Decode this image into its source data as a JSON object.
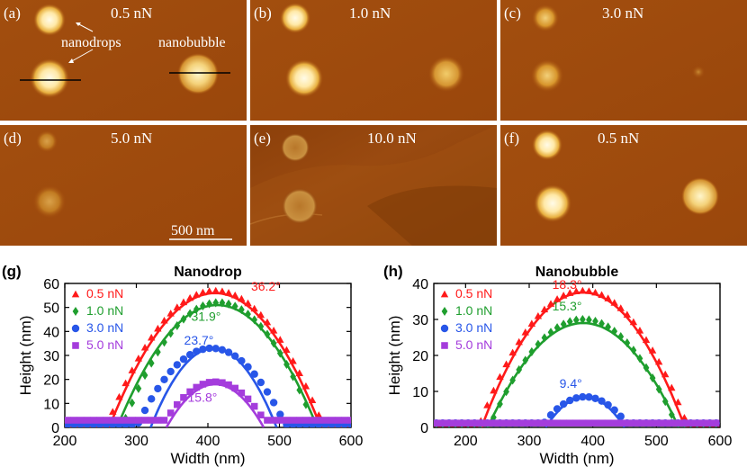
{
  "afm_panels": [
    {
      "label": "(a)",
      "force": "0.5 nN",
      "annot_drop": "nanodrops",
      "annot_bubble": "nanobubble"
    },
    {
      "label": "(b)",
      "force": "1.0 nN"
    },
    {
      "label": "(c)",
      "force": "3.0 nN"
    },
    {
      "label": "(d)",
      "force": "5.0 nN",
      "scale_bar": "500 nm"
    },
    {
      "label": "(e)",
      "force": "10.0 nN"
    },
    {
      "label": "(f)",
      "force": "0.5 nN"
    }
  ],
  "colors": {
    "afm_bg": "#9c4a0c",
    "afm_bg_light": "#b35e12",
    "s05": "#ff1a1a",
    "s10": "#1f9e2e",
    "s30": "#2856e8",
    "s50": "#a43cdc"
  },
  "chart_data": [
    {
      "type": "scatter",
      "panel_label": "(g)",
      "title": "Nanodrop",
      "xlabel": "Width (nm)",
      "ylabel": "Height (nm)",
      "xlim": [
        200,
        600
      ],
      "ylim": [
        0,
        60
      ],
      "xticks": [
        "200",
        "300",
        "400",
        "500",
        "600"
      ],
      "yticks": [
        "0",
        "10",
        "20",
        "30",
        "40",
        "50",
        "60"
      ],
      "series": [
        {
          "name": "0.5 nN",
          "marker": "triangle",
          "color": "#ff1a1a",
          "angle": "36.2°",
          "center": 410,
          "halfwidth": 152,
          "height": 57,
          "fit_center": 410,
          "fit_halfwidth": 148,
          "fit_height": 56
        },
        {
          "name": "1.0 nN",
          "marker": "diamond",
          "color": "#1f9e2e",
          "angle": "31.9°",
          "center": 415,
          "halfwidth": 135,
          "height": 52,
          "fit_center": 413,
          "fit_halfwidth": 140,
          "fit_height": 51
        },
        {
          "name": "3.0 nN",
          "marker": "circle",
          "color": "#2856e8",
          "angle": "23.7°",
          "center": 405,
          "halfwidth": 105,
          "height": 33,
          "fit_center": 408,
          "fit_halfwidth": 88,
          "fit_height": 33
        },
        {
          "name": "5.0 nN",
          "marker": "square",
          "color": "#a43cdc",
          "angle": "15.8°",
          "center": 410,
          "halfwidth": 75,
          "height": 19,
          "fit_center": 410,
          "fit_halfwidth": 68,
          "fit_height": 18
        }
      ]
    },
    {
      "type": "scatter",
      "panel_label": "(h)",
      "title": "Nanobubble",
      "xlabel": "Width (nm)",
      "ylabel": "Height (nm)",
      "xlim": [
        150,
        600
      ],
      "ylim": [
        0,
        40
      ],
      "xticks": [
        "200",
        "300",
        "400",
        "500",
        "600"
      ],
      "yticks": [
        "0",
        "10",
        "20",
        "30",
        "40"
      ],
      "series": [
        {
          "name": "0.5 nN",
          "marker": "triangle",
          "color": "#ff1a1a",
          "angle": "18.3°",
          "center": 385,
          "halfwidth": 165,
          "height": 38,
          "fit_center": 385,
          "fit_halfwidth": 160,
          "fit_height": 37.5
        },
        {
          "name": "1.0 nN",
          "marker": "diamond",
          "color": "#1f9e2e",
          "angle": "15.3°",
          "center": 385,
          "halfwidth": 148,
          "height": 30,
          "fit_center": 385,
          "fit_halfwidth": 150,
          "fit_height": 29
        },
        {
          "name": "3.0 nN",
          "marker": "circle",
          "color": "#2856e8",
          "angle": "9.4°",
          "center": 388,
          "halfwidth": 70,
          "height": 8.5,
          "fit_center": 388,
          "fit_halfwidth": 62,
          "fit_height": 8.5
        },
        {
          "name": "5.0 nN",
          "marker": "square",
          "color": "#a43cdc",
          "angle": "",
          "center": 390,
          "halfwidth": 0,
          "height": 1.5,
          "fit_center": 390,
          "fit_halfwidth": 0,
          "fit_height": 0
        }
      ]
    }
  ]
}
